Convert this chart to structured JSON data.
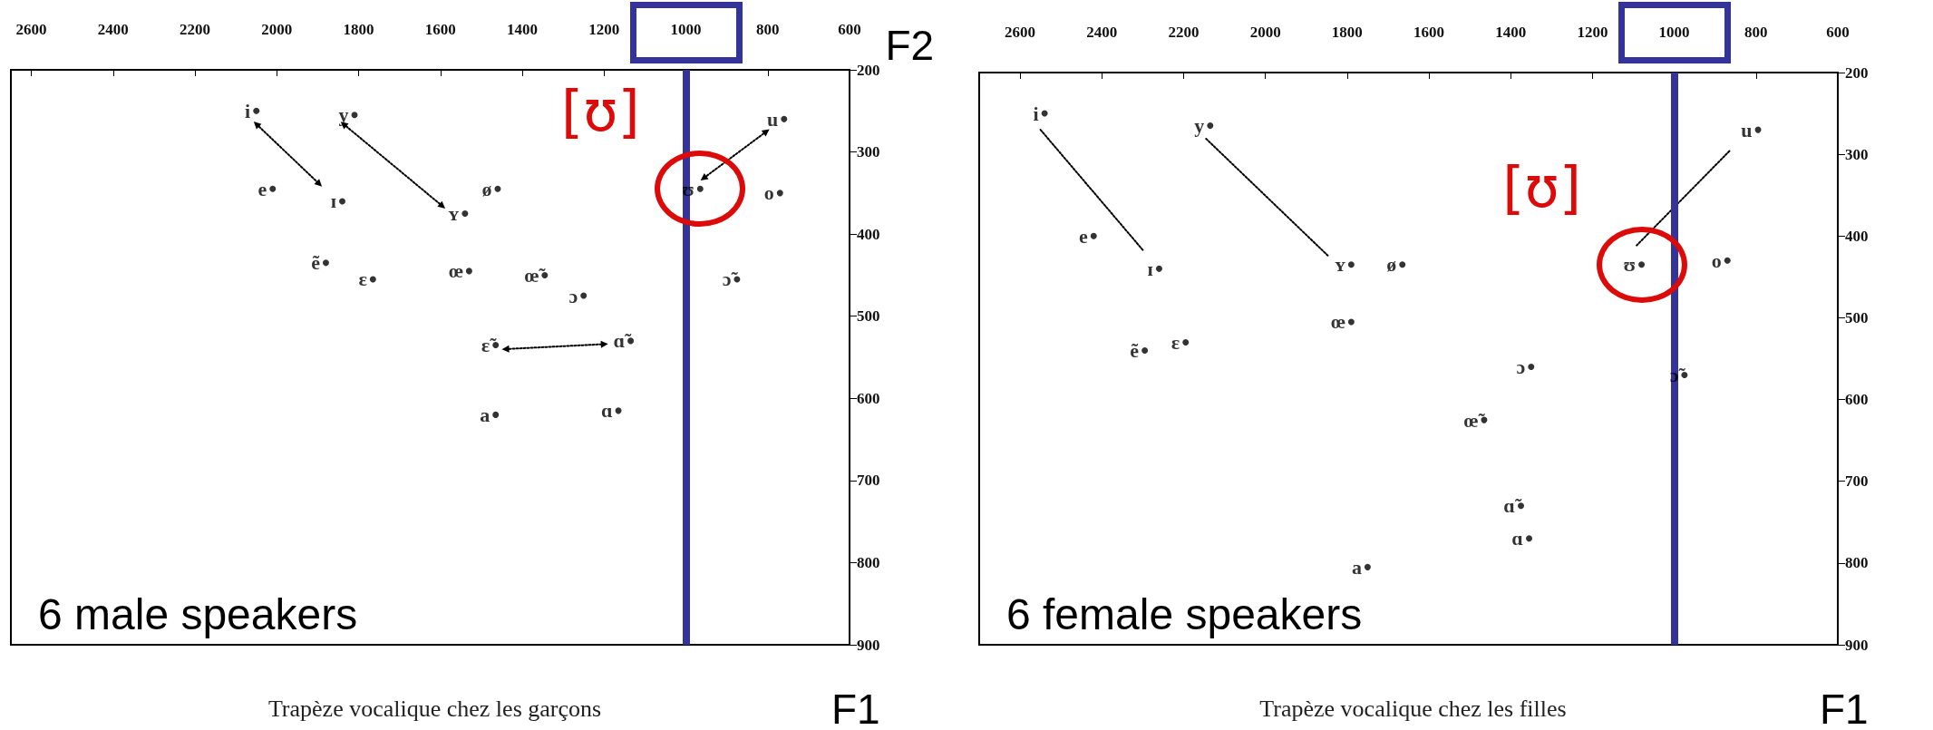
{
  "chart_data": [
    {
      "type": "scatter",
      "title": "Trapèze vocalique chez les garçons",
      "xlabel": "F2",
      "ylabel": "F1",
      "xlim": [
        2650,
        600
      ],
      "xticks": [
        2600,
        2400,
        2200,
        2000,
        1800,
        1600,
        1400,
        1200,
        1000,
        800,
        600
      ],
      "ylim": [
        900,
        200
      ],
      "yticks": [
        200,
        300,
        400,
        500,
        600,
        700,
        800,
        900
      ],
      "marker": "circle",
      "series": [
        {
          "color": "#000000",
          "x": [
            2050,
            1810,
            760,
            2010,
            1840,
            1540,
            1460,
            965,
            770,
            1880,
            1765,
            1530,
            1345,
            1250,
            875,
            1465,
            1135,
            1465,
            1165
          ],
          "values": [
            250,
            255,
            260,
            345,
            360,
            375,
            345,
            345,
            350,
            435,
            455,
            445,
            450,
            475,
            455,
            535,
            530,
            620,
            615
          ],
          "value_labels": [
            "i",
            "y",
            "u",
            "e",
            "ɪ",
            "ʏ",
            "ø",
            "ʊ",
            "o",
            "ẽ",
            "ɛ",
            "œ",
            "œ̃",
            "ɔ",
            "ɔ̃",
            "ɛ̃",
            "ɑ̃",
            "a",
            "ɑ"
          ]
        },
        {
          "type": "line",
          "color": "#000000",
          "line_style": "dotted",
          "marker": "triangle",
          "x": [
            2050,
            1896
          ],
          "values": [
            266,
            339
          ]
        },
        {
          "type": "line",
          "color": "#000000",
          "line_style": "dotted",
          "marker": "triangle",
          "x": [
            1837,
            1595
          ],
          "values": [
            266,
            366
          ]
        },
        {
          "type": "line",
          "color": "#000000",
          "line_style": "dotted",
          "marker": "triangle",
          "x": [
            803,
            957
          ],
          "values": [
            275,
            332
          ]
        },
        {
          "type": "line",
          "color": "#000000",
          "line_style": "dotted",
          "marker": "triangle",
          "x": [
            1441,
            1199
          ],
          "values": [
            540,
            534
          ]
        }
      ],
      "ref_lines": [
        {
          "axis": "x",
          "value": 1000,
          "color": "#333399"
        }
      ],
      "annotations": [
        "6 male speakers",
        {
          "text": "[ʊ]",
          "x": 965,
          "y": 345
        }
      ]
    },
    {
      "type": "scatter",
      "title": "Trapèze vocalique chez les filles",
      "ylabel": "F1",
      "xlim": [
        2700,
        600
      ],
      "xticks": [
        2600,
        2400,
        2200,
        2000,
        1800,
        1600,
        1400,
        1200,
        1000,
        800,
        600
      ],
      "ylim": [
        900,
        200
      ],
      "yticks": [
        200,
        300,
        400,
        500,
        600,
        700,
        800,
        900
      ],
      "marker": "circle",
      "series": [
        {
          "color": "#000000",
          "x": [
            2540,
            2135,
            795,
            2420,
            2260,
            1790,
            1665,
            1080,
            870,
            1790,
            2295,
            2195,
            1350,
            975,
            1465,
            1375,
            1355,
            1750
          ],
          "values": [
            250,
            265,
            270,
            400,
            440,
            435,
            435,
            435,
            430,
            505,
            540,
            530,
            560,
            570,
            625,
            730,
            770,
            805
          ],
          "value_labels": [
            "i",
            "y",
            "u",
            "e",
            "ɪ",
            "ʏ",
            "ø",
            "ʊ",
            "o",
            "œ",
            "ẽ",
            "ɛ",
            "ɔ",
            "ɔ̃",
            "œ̃",
            "ɑ̃",
            "ɑ",
            "a"
          ]
        },
        {
          "type": "line",
          "color": "#000000",
          "line_style": "dotted",
          "marker": "none",
          "x": [
            2550,
            2300
          ],
          "values": [
            270,
            417
          ]
        },
        {
          "type": "line",
          "color": "#000000",
          "line_style": "dotted",
          "marker": "none",
          "x": [
            2145,
            1845
          ],
          "values": [
            281,
            425
          ]
        },
        {
          "type": "line",
          "color": "#000000",
          "line_style": "dotted",
          "marker": "none",
          "x": [
            865,
            1095
          ],
          "values": [
            296,
            413
          ]
        }
      ],
      "ref_lines": [
        {
          "axis": "x",
          "value": 1000,
          "color": "#333399"
        }
      ],
      "annotations": [
        "6 female speakers",
        {
          "text": "[ʊ]",
          "x": 1080,
          "y": 435
        }
      ]
    }
  ]
}
